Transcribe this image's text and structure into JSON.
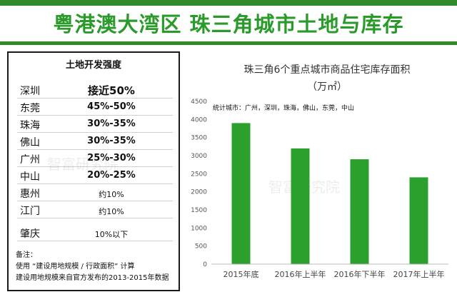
{
  "header": {
    "title": "粤港澳大湾区  珠三角城市土地与库存"
  },
  "land_table": {
    "title": "土地开发强度",
    "rows": [
      {
        "city": "深圳",
        "value": "接近50%"
      },
      {
        "city": "东莞",
        "value": "45%-50%"
      },
      {
        "city": "珠海",
        "value": "30%-35%"
      },
      {
        "city": "佛山",
        "value": "30%-35%"
      },
      {
        "city": "广州",
        "value": "25%-30%"
      },
      {
        "city": "中山",
        "value": "20%-25%"
      },
      {
        "city": "惠州",
        "value": "约10%"
      },
      {
        "city": "江门",
        "value": "约10%"
      },
      {
        "city": "肇庆",
        "value": "10%以下"
      }
    ],
    "notes": [
      "备注：",
      "使用 “建设用地规模 / 行政面积” 计算",
      "建设用地规模来自官方发布的2013-2015年数据"
    ]
  },
  "chart_data": {
    "type": "bar",
    "title": "珠三角6个重点城市商品住宅库存面积",
    "subtitle": "（万㎡）",
    "annotation": "统计城市：广州，深圳，珠海，佛山，东莞，中山",
    "categories": [
      "2015年底",
      "2016年上半年",
      "2016年下半年",
      "2017年上半年"
    ],
    "values": [
      3900,
      3200,
      2900,
      2400
    ],
    "ylim": [
      0,
      4500
    ],
    "yticks": [
      0,
      500,
      1000,
      1500,
      2000,
      2500,
      3000,
      3500,
      4000,
      4500
    ],
    "bar_color": "#2ca02c",
    "grid": false
  },
  "watermark": {
    "text": "智富研究院"
  }
}
